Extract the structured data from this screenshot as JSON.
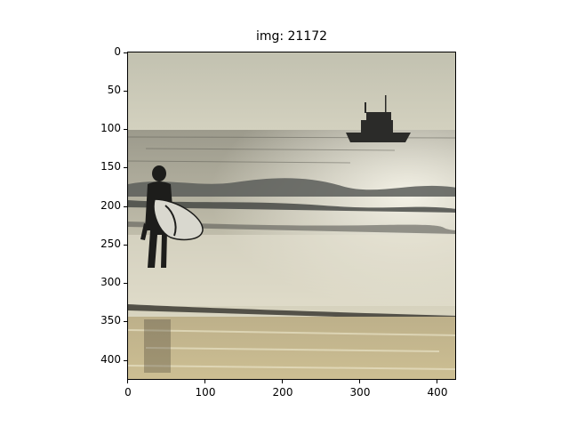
{
  "figure": {
    "title": "img: 21172"
  },
  "axes": {
    "x_ticks": [
      "0",
      "100",
      "200",
      "300",
      "400"
    ],
    "y_ticks": [
      "0",
      "50",
      "100",
      "150",
      "200",
      "250",
      "300",
      "350",
      "400"
    ]
  },
  "photo": {
    "subject": "surfer-with-board-on-beach",
    "colors": {
      "sky": "#c9c8b5",
      "sea": "#a9a79a",
      "sand": "#c9b98e",
      "silhouette": "#1e1e1e",
      "glare": "#f3f1e4"
    }
  }
}
